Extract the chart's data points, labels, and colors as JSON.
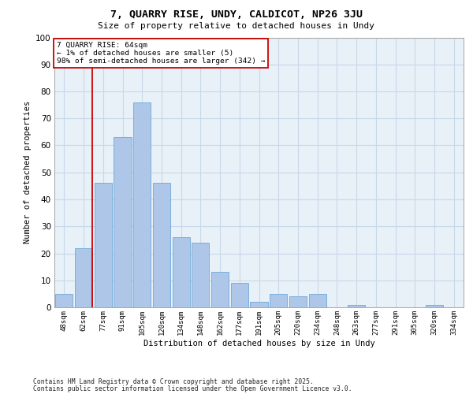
{
  "title1": "7, QUARRY RISE, UNDY, CALDICOT, NP26 3JU",
  "title2": "Size of property relative to detached houses in Undy",
  "xlabel": "Distribution of detached houses by size in Undy",
  "ylabel": "Number of detached properties",
  "categories": [
    "48sqm",
    "62sqm",
    "77sqm",
    "91sqm",
    "105sqm",
    "120sqm",
    "134sqm",
    "148sqm",
    "162sqm",
    "177sqm",
    "191sqm",
    "205sqm",
    "220sqm",
    "234sqm",
    "248sqm",
    "263sqm",
    "277sqm",
    "291sqm",
    "305sqm",
    "320sqm",
    "334sqm"
  ],
  "values": [
    5,
    22,
    46,
    63,
    76,
    46,
    26,
    24,
    13,
    9,
    2,
    5,
    4,
    5,
    0,
    1,
    0,
    0,
    0,
    1,
    0
  ],
  "bar_color": "#aec6e8",
  "bar_edge_color": "#5a9fd4",
  "highlight_color": "#cc0000",
  "annotation_line1": "7 QUARRY RISE: 64sqm",
  "annotation_line2": "← 1% of detached houses are smaller (5)",
  "annotation_line3": "98% of semi-detached houses are larger (342) →",
  "ylim": [
    0,
    100
  ],
  "yticks": [
    0,
    10,
    20,
    30,
    40,
    50,
    60,
    70,
    80,
    90,
    100
  ],
  "grid_color": "#c8d8e8",
  "bg_color": "#e8f0f8",
  "footnote1": "Contains HM Land Registry data © Crown copyright and database right 2025.",
  "footnote2": "Contains public sector information licensed under the Open Government Licence v3.0."
}
